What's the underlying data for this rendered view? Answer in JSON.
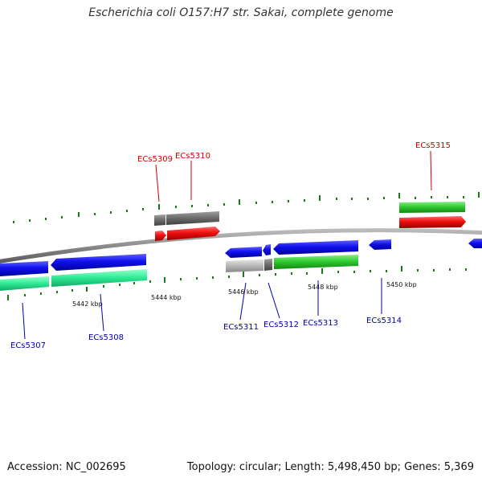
{
  "title": "Escherichia coli O157:H7 str. Sakai, complete genome",
  "footer": {
    "accession_label": "Accession:",
    "accession_value": "NC_002695",
    "topology_text": "Topology: circular; Length: 5,498,450 bp; Genes: 5,369"
  },
  "colors": {
    "backbone": "#8a8a8a",
    "forward_cds_label": "#cc0000",
    "reverse_cds_label": "#0000aa",
    "tick": "#1a7a1a",
    "blue_cds": "#1010ee",
    "green_cds": "#33cc33",
    "teal_cds": "#33ee99",
    "red_cds": "#ee1010",
    "gray_cds": "#707070",
    "lightgray_cds": "#bbbbbb"
  },
  "scale_labels": [
    "5442 kbp",
    "5444 kbp",
    "5446 kbp",
    "5448 kbp",
    "5450 kbp"
  ],
  "genes": [
    {
      "id": "ECs5307"
    },
    {
      "id": "ECs5308"
    },
    {
      "id": "ECs5309"
    },
    {
      "id": "ECs5310"
    },
    {
      "id": "ECs5311"
    },
    {
      "id": "ECs5312"
    },
    {
      "id": "ECs5313"
    },
    {
      "id": "ECs5314"
    },
    {
      "id": "ECs5315"
    }
  ]
}
